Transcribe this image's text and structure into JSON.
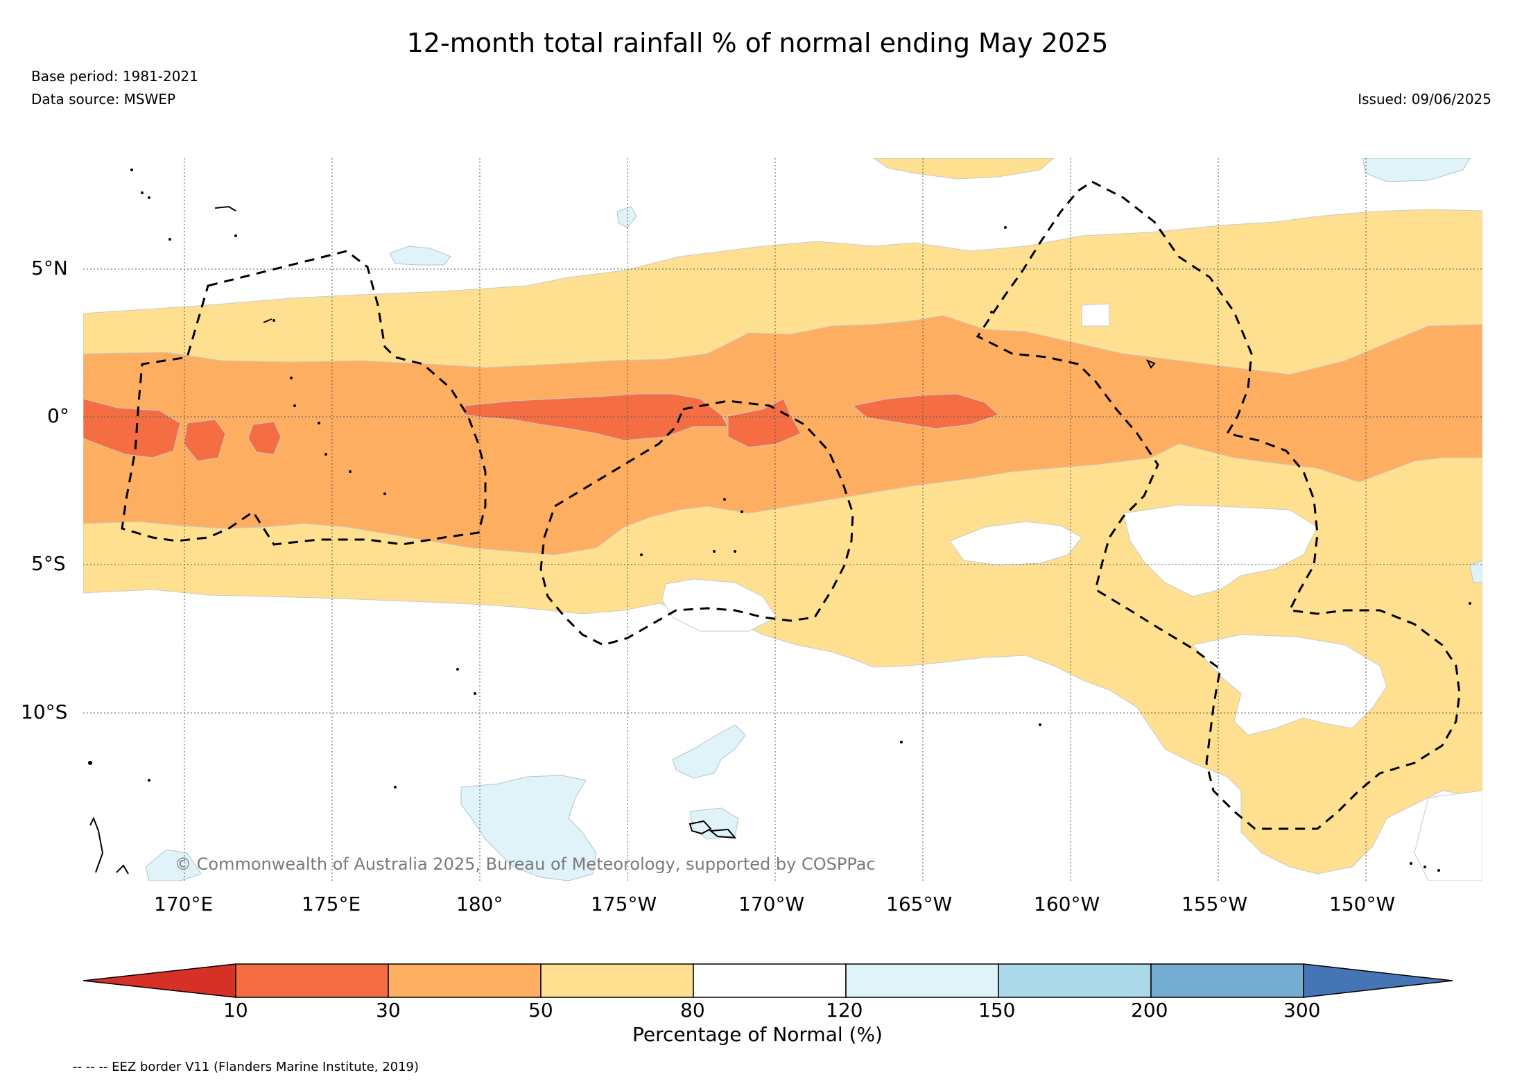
{
  "title": "12-month total rainfall % of normal ending May 2025",
  "meta": {
    "base_period": "Base period: 1981-2021",
    "data_source": "Data source: MSWEP",
    "issued": "Issued: 09/06/2025"
  },
  "copyright": "© Commonwealth of Australia 2025, Bureau of Meteorology, supported by COSPPac",
  "map": {
    "lat_labels": [
      "5°N",
      "0°",
      "5°S",
      "10°S"
    ],
    "lat_values": [
      5,
      0,
      -5,
      -10
    ],
    "lon_labels": [
      "170°E",
      "175°E",
      "180°",
      "175°W",
      "170°W",
      "165°W",
      "160°W",
      "155°W",
      "150°W"
    ],
    "lon_values": [
      170,
      175,
      180,
      185,
      190,
      195,
      200,
      205,
      210
    ],
    "extent": {
      "lon_min": 166.6,
      "lon_max": 213.9,
      "lat_min": -15.7,
      "lat_max": 8.8
    },
    "boundary_style": "dashed black EEZ lines"
  },
  "colorbar": {
    "title": "Percentage of Normal (%)",
    "ticks": [
      "10",
      "30",
      "50",
      "80",
      "120",
      "150",
      "200",
      "300"
    ],
    "colors": [
      "#d73027",
      "#f46d43",
      "#fdae61",
      "#fee090",
      "#ffffff",
      "#e0f3f8",
      "#abd9e9",
      "#74add1",
      "#4575b4"
    ]
  },
  "legend_note": "-- -- -- EEZ border V11 (Flanders Marine Institute, 2019)"
}
